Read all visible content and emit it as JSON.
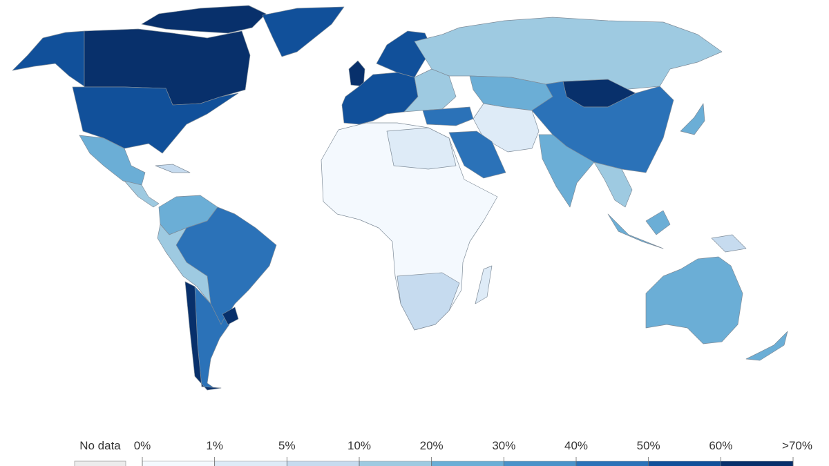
{
  "legend": {
    "no_data": "No data",
    "no_data_color": "#ececec",
    "ticks": [
      "0%",
      "1%",
      "5%",
      "10%",
      "20%",
      "30%",
      "40%",
      "50%",
      "60%",
      ">70%"
    ],
    "colors": [
      "#f4f9fe",
      "#deebf7",
      "#c6dbef",
      "#9ecae1",
      "#6baed6",
      "#4a92c9",
      "#2b72b8",
      "#11509a",
      "#08306b"
    ]
  }
}
